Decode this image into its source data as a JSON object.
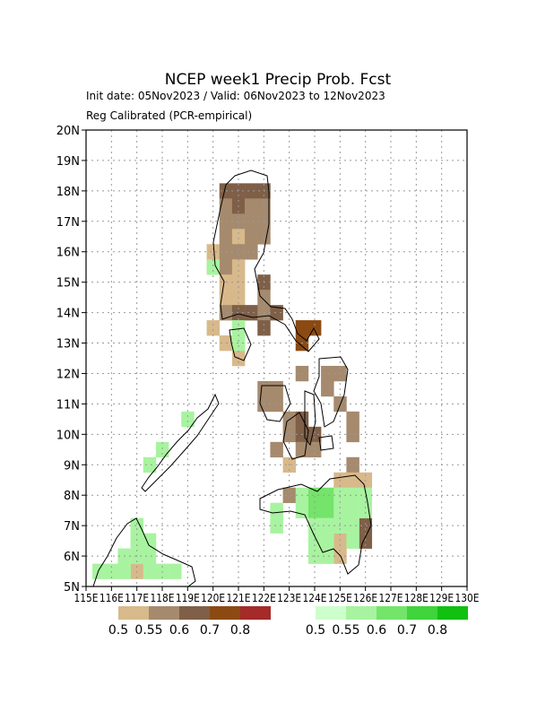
{
  "map": {
    "title": "NCEP week1 Precip Prob. Fcst",
    "subtitle": "Init date: 05Nov2023 / Valid: 06Nov2023 to 12Nov2023",
    "method": "Reg Calibrated (PCR-empirical)",
    "xlim": [
      115,
      130
    ],
    "ylim": [
      5,
      20
    ],
    "xticks": [
      {
        "value": 115,
        "label": "115E"
      },
      {
        "value": 116,
        "label": "116E"
      },
      {
        "value": 117,
        "label": "117E"
      },
      {
        "value": 118,
        "label": "118E"
      },
      {
        "value": 119,
        "label": "119E"
      },
      {
        "value": 120,
        "label": "120E"
      },
      {
        "value": 121,
        "label": "121E"
      },
      {
        "value": 122,
        "label": "122E"
      },
      {
        "value": 123,
        "label": "123E"
      },
      {
        "value": 124,
        "label": "124E"
      },
      {
        "value": 125,
        "label": "125E"
      },
      {
        "value": 126,
        "label": "126E"
      },
      {
        "value": 127,
        "label": "127E"
      },
      {
        "value": 128,
        "label": "128E"
      },
      {
        "value": 129,
        "label": "129E"
      },
      {
        "value": 130,
        "label": "130E"
      }
    ],
    "yticks": [
      {
        "value": 5,
        "label": "5N"
      },
      {
        "value": 6,
        "label": "6N"
      },
      {
        "value": 7,
        "label": "7N"
      },
      {
        "value": 8,
        "label": "8N"
      },
      {
        "value": 9,
        "label": "9N"
      },
      {
        "value": 10,
        "label": "10N"
      },
      {
        "value": 11,
        "label": "11N"
      },
      {
        "value": 12,
        "label": "12N"
      },
      {
        "value": 13,
        "label": "13N"
      },
      {
        "value": 14,
        "label": "14N"
      },
      {
        "value": 15,
        "label": "15N"
      },
      {
        "value": 16,
        "label": "16N"
      },
      {
        "value": 17,
        "label": "17N"
      },
      {
        "value": 18,
        "label": "18N"
      },
      {
        "value": 19,
        "label": "19N"
      },
      {
        "value": 20,
        "label": "20N"
      }
    ],
    "cell_size": 0.5,
    "below_legend": {
      "colors": [
        "#d8b98b",
        "#a58a6e",
        "#7f5f47",
        "#8b4a12",
        "#a52a2a"
      ],
      "levels": [
        {
          "value": 0.5,
          "label": "0.5"
        },
        {
          "value": 0.55,
          "label": "0.55"
        },
        {
          "value": 0.6,
          "label": "0.6"
        },
        {
          "value": 0.7,
          "label": "0.7"
        },
        {
          "value": 0.8,
          "label": "0.8"
        }
      ]
    },
    "above_legend": {
      "colors": [
        "#ccffcc",
        "#a8f3a0",
        "#74e46a",
        "#3fd43c",
        "#12c012"
      ],
      "levels": [
        {
          "value": 0.5,
          "label": "0.5"
        },
        {
          "value": 0.55,
          "label": "0.55"
        },
        {
          "value": 0.6,
          "label": "0.6"
        },
        {
          "value": 0.7,
          "label": "0.7"
        },
        {
          "value": 0.8,
          "label": "0.8"
        }
      ]
    },
    "below_cells": [
      [
        120.25,
        17.75,
        0.6
      ],
      [
        120.75,
        17.75,
        0.6
      ],
      [
        121.25,
        17.75,
        0.6
      ],
      [
        121.75,
        17.75,
        0.6
      ],
      [
        120.25,
        17.25,
        0.55
      ],
      [
        120.75,
        17.25,
        0.6
      ],
      [
        121.25,
        17.25,
        0.55
      ],
      [
        121.75,
        17.25,
        0.55
      ],
      [
        120.25,
        16.75,
        0.55
      ],
      [
        120.75,
        16.75,
        0.55
      ],
      [
        121.25,
        16.75,
        0.55
      ],
      [
        121.75,
        16.75,
        0.55
      ],
      [
        120.25,
        16.25,
        0.55
      ],
      [
        120.75,
        16.25,
        0.5
      ],
      [
        121.25,
        16.25,
        0.55
      ],
      [
        121.75,
        16.25,
        0.55
      ],
      [
        119.75,
        15.75,
        0.5
      ],
      [
        120.25,
        15.75,
        0.55
      ],
      [
        120.75,
        15.75,
        0.55
      ],
      [
        121.25,
        15.75,
        0.55
      ],
      [
        119.75,
        15.25,
        0.5
      ],
      [
        120.25,
        15.25,
        0.55
      ],
      [
        120.75,
        15.25,
        0.5
      ],
      [
        120.25,
        14.75,
        0.5
      ],
      [
        120.75,
        14.75,
        0.5
      ],
      [
        121.75,
        14.75,
        0.6
      ],
      [
        120.25,
        14.25,
        0.5
      ],
      [
        120.75,
        14.25,
        0.5
      ],
      [
        121.75,
        14.25,
        0.55
      ],
      [
        120.25,
        13.75,
        0.55
      ],
      [
        120.75,
        13.75,
        0.6
      ],
      [
        121.25,
        13.75,
        0.6
      ],
      [
        121.75,
        13.75,
        0.55
      ],
      [
        122.25,
        13.75,
        0.6
      ],
      [
        119.75,
        13.25,
        0.5
      ],
      [
        121.75,
        13.25,
        0.6
      ],
      [
        123.25,
        13.25,
        0.7
      ],
      [
        123.75,
        13.25,
        0.7
      ],
      [
        120.25,
        12.75,
        0.5
      ],
      [
        123.25,
        12.75,
        0.7
      ],
      [
        120.75,
        12.25,
        0.5
      ],
      [
        123.25,
        11.75,
        0.55
      ],
      [
        124.25,
        11.75,
        0.55
      ],
      [
        124.75,
        11.75,
        0.55
      ],
      [
        121.75,
        11.25,
        0.55
      ],
      [
        122.25,
        11.25,
        0.55
      ],
      [
        124.25,
        11.25,
        0.55
      ],
      [
        121.75,
        10.75,
        0.55
      ],
      [
        122.25,
        10.75,
        0.55
      ],
      [
        124.75,
        10.75,
        0.55
      ],
      [
        122.75,
        10.25,
        0.55
      ],
      [
        123.25,
        10.25,
        0.6
      ],
      [
        125.25,
        10.25,
        0.55
      ],
      [
        122.75,
        9.75,
        0.55
      ],
      [
        123.25,
        9.75,
        0.6
      ],
      [
        123.75,
        9.75,
        0.6
      ],
      [
        125.25,
        9.75,
        0.55
      ],
      [
        122.25,
        9.25,
        0.55
      ],
      [
        123.25,
        9.25,
        0.55
      ],
      [
        123.75,
        9.25,
        0.55
      ],
      [
        122.75,
        8.75,
        0.5
      ],
      [
        125.25,
        8.75,
        0.55
      ],
      [
        124.75,
        8.25,
        0.5
      ],
      [
        125.25,
        8.25,
        0.5
      ],
      [
        125.75,
        8.25,
        0.5
      ],
      [
        122.75,
        7.75,
        0.55
      ],
      [
        125.75,
        6.75,
        0.6
      ],
      [
        124.75,
        6.25,
        0.5
      ],
      [
        125.75,
        6.25,
        0.6
      ],
      [
        124.75,
        5.75,
        0.5
      ],
      [
        116.75,
        5.25,
        0.5
      ]
    ],
    "above_cells": [
      [
        119.75,
        15.25,
        0.55
      ],
      [
        120.75,
        13.25,
        0.55
      ],
      [
        120.75,
        12.75,
        0.55
      ],
      [
        118.75,
        10.25,
        0.55
      ],
      [
        117.75,
        9.25,
        0.55
      ],
      [
        117.25,
        8.75,
        0.55
      ],
      [
        123.25,
        7.75,
        0.55
      ],
      [
        123.75,
        7.75,
        0.6
      ],
      [
        124.25,
        7.75,
        0.6
      ],
      [
        124.75,
        7.75,
        0.55
      ],
      [
        125.25,
        7.75,
        0.55
      ],
      [
        125.75,
        7.75,
        0.55
      ],
      [
        122.25,
        7.25,
        0.55
      ],
      [
        123.25,
        7.25,
        0.55
      ],
      [
        123.75,
        7.25,
        0.6
      ],
      [
        124.25,
        7.25,
        0.6
      ],
      [
        124.75,
        7.25,
        0.55
      ],
      [
        125.25,
        7.25,
        0.55
      ],
      [
        125.75,
        7.25,
        0.55
      ],
      [
        122.25,
        6.75,
        0.55
      ],
      [
        123.75,
        6.75,
        0.55
      ],
      [
        124.25,
        6.75,
        0.55
      ],
      [
        124.75,
        6.75,
        0.55
      ],
      [
        125.25,
        6.75,
        0.55
      ],
      [
        123.75,
        6.25,
        0.55
      ],
      [
        124.25,
        6.25,
        0.55
      ],
      [
        125.25,
        6.25,
        0.55
      ],
      [
        123.75,
        5.75,
        0.55
      ],
      [
        124.25,
        5.75,
        0.55
      ],
      [
        116.75,
        6.75,
        0.55
      ],
      [
        116.75,
        6.25,
        0.55
      ],
      [
        117.25,
        6.25,
        0.55
      ],
      [
        116.25,
        5.75,
        0.55
      ],
      [
        116.75,
        5.75,
        0.55
      ],
      [
        117.25,
        5.75,
        0.55
      ],
      [
        115.25,
        5.25,
        0.55
      ],
      [
        115.75,
        5.25,
        0.55
      ],
      [
        116.25,
        5.25,
        0.55
      ],
      [
        117.25,
        5.25,
        0.55
      ],
      [
        117.75,
        5.25,
        0.55
      ],
      [
        118.25,
        5.25,
        0.55
      ]
    ]
  }
}
